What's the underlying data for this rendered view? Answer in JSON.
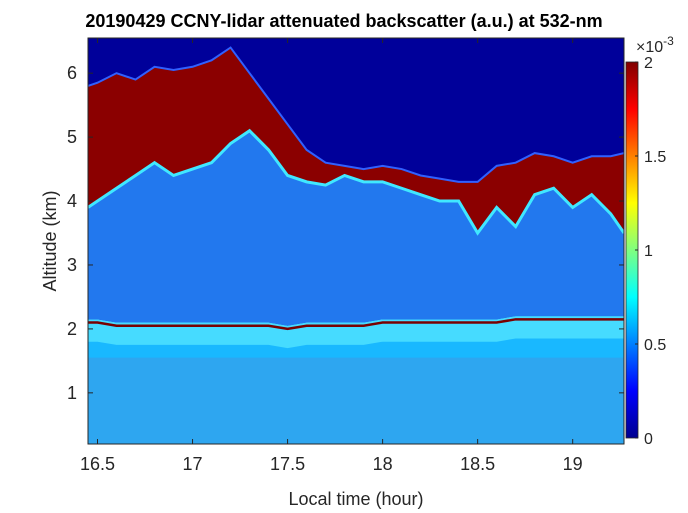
{
  "chart_data": {
    "type": "heatmap",
    "title": "20190429 CCNY-lidar attenuated backscatter (a.u.) at 532-nm",
    "xlabel": "Local time (hour)",
    "ylabel": "Altitude (km)",
    "xlim": [
      16.45,
      19.27
    ],
    "ylim": [
      0.2,
      6.55
    ],
    "xticks": [
      16.5,
      17,
      17.5,
      18,
      18.5,
      19
    ],
    "xtick_labels": [
      "16.5",
      "17",
      "17.5",
      "18",
      "18.5",
      "19"
    ],
    "yticks": [
      1,
      2,
      3,
      4,
      5,
      6
    ],
    "ytick_labels": [
      "1",
      "2",
      "3",
      "4",
      "5",
      "6"
    ],
    "colorbar": {
      "colormap": "jet",
      "range": [
        0,
        0.002
      ],
      "ticks": [
        0,
        0.0005,
        0.001,
        0.0015,
        0.002
      ],
      "tick_labels": [
        "0",
        "0.5",
        "1",
        "1.5",
        "2"
      ],
      "exponent_label": "×10",
      "exponent_power": "-3"
    },
    "layers": {
      "time": [
        16.45,
        16.5,
        16.6,
        16.7,
        16.8,
        16.9,
        17.0,
        17.1,
        17.2,
        17.3,
        17.4,
        17.5,
        17.6,
        17.7,
        17.8,
        17.9,
        18.0,
        18.1,
        18.2,
        18.3,
        18.4,
        18.5,
        18.6,
        18.7,
        18.8,
        18.9,
        19.0,
        19.1,
        19.2,
        19.27
      ],
      "aerosol_top_km": [
        2.15,
        2.15,
        2.1,
        2.1,
        2.1,
        2.1,
        2.1,
        2.1,
        2.1,
        2.1,
        2.1,
        2.05,
        2.1,
        2.1,
        2.1,
        2.1,
        2.15,
        2.15,
        2.15,
        2.15,
        2.15,
        2.15,
        2.15,
        2.2,
        2.2,
        2.2,
        2.2,
        2.2,
        2.2,
        2.2
      ],
      "cloud_base_km": [
        3.9,
        4.0,
        4.2,
        4.4,
        4.6,
        4.4,
        4.5,
        4.6,
        4.9,
        5.1,
        4.8,
        4.4,
        4.3,
        4.25,
        4.4,
        4.3,
        4.3,
        4.2,
        4.1,
        4.0,
        4.0,
        3.5,
        3.9,
        3.6,
        4.1,
        4.2,
        3.9,
        4.1,
        3.8,
        3.5
      ],
      "cloud_top_km": [
        5.8,
        5.85,
        6.0,
        5.9,
        6.1,
        6.05,
        6.1,
        6.2,
        6.4,
        6.0,
        5.6,
        5.2,
        4.8,
        4.6,
        4.55,
        4.5,
        4.55,
        4.5,
        4.4,
        4.35,
        4.3,
        4.3,
        4.55,
        4.6,
        4.75,
        4.7,
        4.6,
        4.7,
        4.7,
        4.75
      ]
    }
  }
}
